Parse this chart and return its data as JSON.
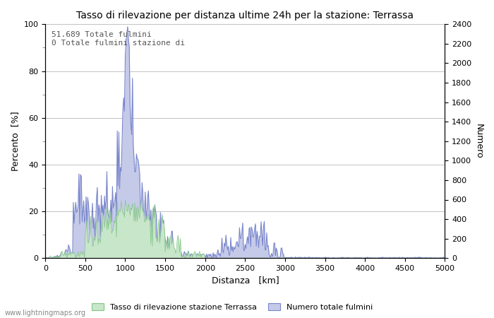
{
  "title": "Tasso di rilevazione per distanza ultime 24h per la stazione: Terrassa",
  "xlabel": "Distanza   [km]",
  "ylabel_left": "Percento  [%]",
  "ylabel_right": "Numero",
  "annotation_line1": "51.689 Totale fulmini",
  "annotation_line2": "0 Totale fulmini stazione di",
  "legend_label1": "Tasso di rilevazione stazione Terrassa",
  "legend_label2": "Numero totale fulmini",
  "watermark": "www.lightningmaps.org",
  "xlim": [
    0,
    5000
  ],
  "ylim_left": [
    0,
    100
  ],
  "ylim_right": [
    0,
    2400
  ],
  "xticks": [
    0,
    500,
    1000,
    1500,
    2000,
    2500,
    3000,
    3500,
    4000,
    4500,
    5000
  ],
  "yticks_left": [
    0,
    20,
    40,
    60,
    80,
    100
  ],
  "yticks_right": [
    0,
    200,
    400,
    600,
    800,
    1000,
    1200,
    1400,
    1600,
    1800,
    2000,
    2200,
    2400
  ],
  "fill_color_green": "#c8e6c9",
  "fill_color_blue": "#c5cae9",
  "line_color_blue": "#7986cb",
  "line_color_green": "#81c784",
  "bg_color": "#ffffff",
  "grid_color": "#aaaaaa",
  "minor_tick_color": "#888888"
}
